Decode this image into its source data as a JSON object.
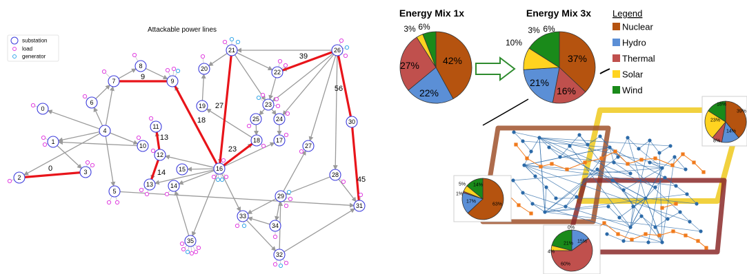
{
  "graph": {
    "title": "Attackable power lines",
    "legend": [
      {
        "label": "substation",
        "color": "#3b3bdc",
        "kind": "big"
      },
      {
        "label": "load",
        "color": "#e040e0",
        "kind": "small"
      },
      {
        "label": "generator",
        "color": "#38a8e8",
        "kind": "small"
      }
    ],
    "nodes": [
      "0",
      "1",
      "2",
      "3",
      "4",
      "5",
      "6",
      "7",
      "8",
      "9",
      "10",
      "11",
      "12",
      "13",
      "14",
      "15",
      "16",
      "17",
      "18",
      "19",
      "20",
      "21",
      "22",
      "23",
      "24",
      "25",
      "26",
      "27",
      "28",
      "29",
      "30",
      "31",
      "32",
      "33",
      "34",
      "35"
    ],
    "attack_labels": [
      "0",
      "9",
      "13",
      "14",
      "18",
      "23",
      "27",
      "39",
      "45",
      "56"
    ]
  },
  "mix1": {
    "title": "Energy Mix 1x",
    "labels": [
      "42%",
      "22%",
      "27%",
      "3%",
      "6%"
    ]
  },
  "mix3": {
    "title": "Energy Mix 3x",
    "labels": [
      "37%",
      "16%",
      "21%",
      "10%",
      "3%",
      "6%"
    ]
  },
  "legend": {
    "title": "Legend",
    "items": [
      {
        "label": "Nuclear",
        "color": "#b5530f"
      },
      {
        "label": "Hydro",
        "color": "#5b8fd6"
      },
      {
        "label": "Thermal",
        "color": "#c0504d"
      },
      {
        "label": "Solar",
        "color": "#ffd320"
      },
      {
        "label": "Wind",
        "color": "#1a8a1a"
      }
    ]
  },
  "small_pies": [
    {
      "labels": [
        "39%",
        "14%",
        "8%",
        "23%",
        "18%"
      ]
    },
    {
      "labels": [
        "63%",
        "17%",
        "1%",
        "5%",
        "14%"
      ]
    },
    {
      "labels": [
        "15%",
        "60%",
        "4%",
        "21%",
        "0%"
      ]
    }
  ]
}
